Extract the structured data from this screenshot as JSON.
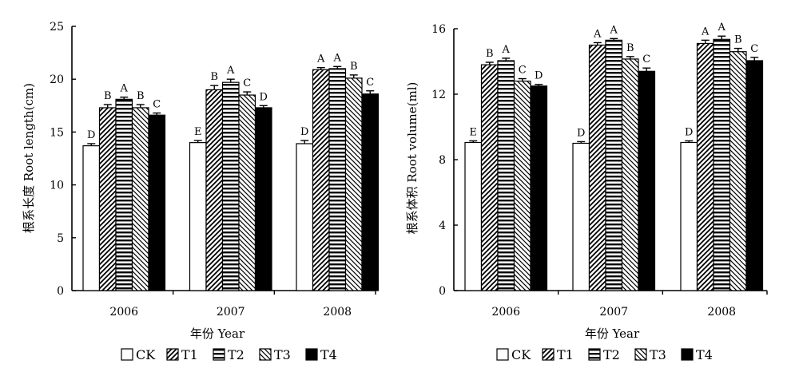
{
  "chart_data": [
    {
      "type": "bar",
      "categories": [
        "2006",
        "2007",
        "2008"
      ],
      "series": [
        {
          "name": "CK",
          "values": [
            13.7,
            14.0,
            13.9
          ],
          "errors": [
            0.2,
            0.2,
            0.3
          ],
          "sig": [
            "D",
            "E",
            "D"
          ]
        },
        {
          "name": "T1",
          "values": [
            17.3,
            19.0,
            20.9
          ],
          "errors": [
            0.3,
            0.4,
            0.2
          ],
          "sig": [
            "B",
            "B",
            "A"
          ]
        },
        {
          "name": "T2",
          "values": [
            18.1,
            19.7,
            21.0
          ],
          "errors": [
            0.2,
            0.3,
            0.2
          ],
          "sig": [
            "A",
            "A",
            "A"
          ]
        },
        {
          "name": "T3",
          "values": [
            17.3,
            18.5,
            20.1
          ],
          "errors": [
            0.3,
            0.3,
            0.3
          ],
          "sig": [
            "B",
            "C",
            "B"
          ]
        },
        {
          "name": "T4",
          "values": [
            16.6,
            17.3,
            18.6
          ],
          "errors": [
            0.2,
            0.2,
            0.3
          ],
          "sig": [
            "C",
            "D",
            "C"
          ]
        }
      ],
      "ylabel": "根系长度 Root length(cm)",
      "xlabel": "年份 Year",
      "ylim": [
        0,
        25
      ],
      "yticks": [
        "0",
        "5",
        "10",
        "15",
        "20",
        "25"
      ]
    },
    {
      "type": "bar",
      "categories": [
        "2006",
        "2007",
        "2008"
      ],
      "series": [
        {
          "name": "CK",
          "values": [
            9.05,
            9.0,
            9.05
          ],
          "errors": [
            0.1,
            0.1,
            0.1
          ],
          "sig": [
            "E",
            "D",
            "D"
          ]
        },
        {
          "name": "T1",
          "values": [
            13.8,
            15.0,
            15.1
          ],
          "errors": [
            0.15,
            0.15,
            0.2
          ],
          "sig": [
            "B",
            "A",
            "A"
          ]
        },
        {
          "name": "T2",
          "values": [
            14.05,
            15.3,
            15.35
          ],
          "errors": [
            0.15,
            0.1,
            0.2
          ],
          "sig": [
            "A",
            "A",
            "A"
          ]
        },
        {
          "name": "T3",
          "values": [
            12.8,
            14.15,
            14.6
          ],
          "errors": [
            0.15,
            0.15,
            0.2
          ],
          "sig": [
            "C",
            "B",
            "B"
          ]
        },
        {
          "name": "T4",
          "values": [
            12.5,
            13.4,
            14.05
          ],
          "errors": [
            0.1,
            0.2,
            0.2
          ],
          "sig": [
            "D",
            "C",
            "C"
          ]
        }
      ],
      "ylabel": "根系体积 Root volume(ml)",
      "xlabel": "年份 Year",
      "ylim": [
        0,
        16
      ],
      "yticks": [
        "0",
        "4",
        "8",
        "12",
        "16"
      ]
    }
  ]
}
